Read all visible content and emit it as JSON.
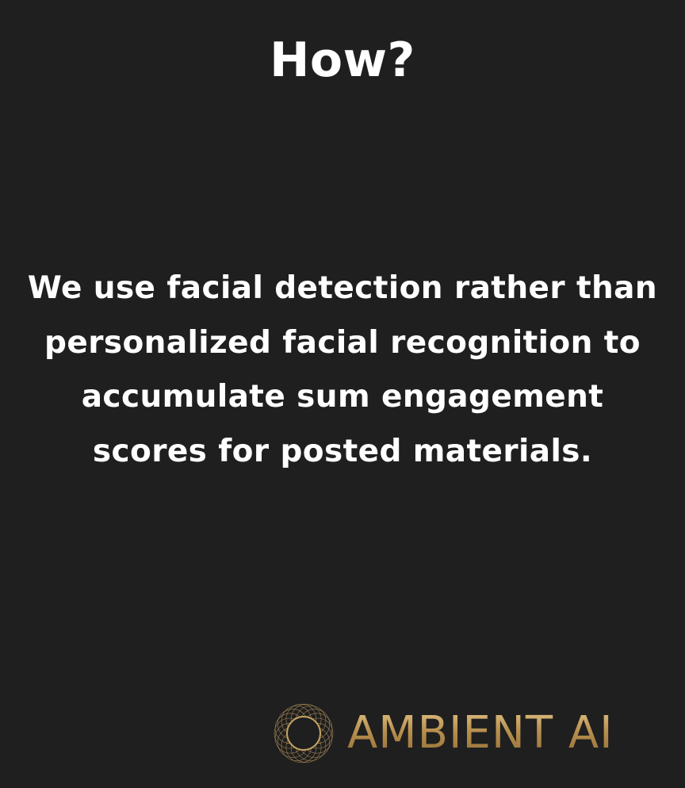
{
  "slide": {
    "title": "How?",
    "body": "We use facial detection rather than personalized facial recognition to accumulate sum engagement scores for posted materials."
  },
  "logo": {
    "brand_name": "AMBIENT AI",
    "emblem_icon": "gold-geometric-rosette-icon",
    "gold_color": "#c9a464"
  },
  "colors": {
    "background": "#1f1f1f",
    "text": "#ffffff"
  }
}
